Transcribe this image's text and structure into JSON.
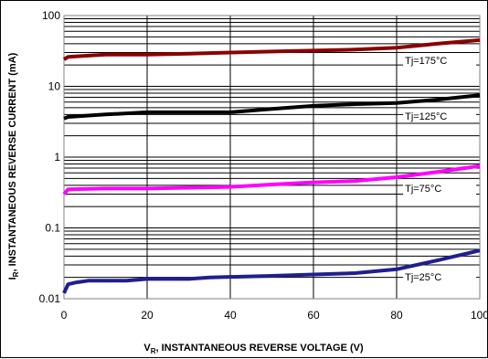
{
  "chart_data": {
    "type": "line",
    "xlabel_main": "V",
    "xlabel_sub": "R",
    "xlabel_rest": ", INSTANTANEOUS REVERSE VOLTAGE (V)",
    "ylabel_main": "I",
    "ylabel_sub": "R",
    "ylabel_rest": ", INSTANTANEOUS REVERSE CURRENT (mA)",
    "xlim": [
      0,
      100
    ],
    "ylim": [
      0.01,
      100
    ],
    "yscale": "log",
    "grid": true,
    "x_ticks": [
      "0",
      "20",
      "40",
      "60",
      "80",
      "100"
    ],
    "x_tick_values": [
      0,
      20,
      40,
      60,
      80,
      100
    ],
    "y_ticks": [
      "0.01",
      "0.1",
      "1",
      "10",
      "100"
    ],
    "y_tick_values": [
      0.01,
      0.1,
      1,
      10,
      100
    ],
    "series": [
      {
        "name": "Tj=175°C",
        "color": "#8b0000",
        "points": [
          [
            0,
            24
          ],
          [
            1,
            26
          ],
          [
            5,
            27
          ],
          [
            10,
            28
          ],
          [
            20,
            28
          ],
          [
            30,
            29
          ],
          [
            40,
            30
          ],
          [
            50,
            31
          ],
          [
            60,
            32
          ],
          [
            70,
            33
          ],
          [
            80,
            35
          ],
          [
            90,
            40
          ],
          [
            100,
            45
          ]
        ]
      },
      {
        "name": "Tj=125°C",
        "color": "#000000",
        "points": [
          [
            0,
            3.5
          ],
          [
            1,
            3.7
          ],
          [
            10,
            4.0
          ],
          [
            20,
            4.3
          ],
          [
            30,
            4.3
          ],
          [
            40,
            4.3
          ],
          [
            50,
            4.8
          ],
          [
            60,
            5.3
          ],
          [
            70,
            5.6
          ],
          [
            80,
            5.8
          ],
          [
            90,
            6.5
          ],
          [
            100,
            7.5
          ]
        ]
      },
      {
        "name": "Tj=75°C",
        "color": "#ff00ff",
        "points": [
          [
            0,
            0.3
          ],
          [
            1,
            0.35
          ],
          [
            10,
            0.36
          ],
          [
            20,
            0.36
          ],
          [
            30,
            0.37
          ],
          [
            40,
            0.38
          ],
          [
            50,
            0.41
          ],
          [
            60,
            0.44
          ],
          [
            70,
            0.46
          ],
          [
            80,
            0.52
          ],
          [
            90,
            0.62
          ],
          [
            100,
            0.75
          ]
        ]
      },
      {
        "name": "Tj=25°C",
        "color": "#1f1f8f",
        "points": [
          [
            0,
            0.012
          ],
          [
            1,
            0.016
          ],
          [
            3,
            0.017
          ],
          [
            6,
            0.018
          ],
          [
            15,
            0.018
          ],
          [
            20,
            0.019
          ],
          [
            30,
            0.019
          ],
          [
            35,
            0.02
          ],
          [
            50,
            0.021
          ],
          [
            60,
            0.022
          ],
          [
            70,
            0.023
          ],
          [
            80,
            0.026
          ],
          [
            90,
            0.035
          ],
          [
            100,
            0.048
          ]
        ]
      }
    ]
  }
}
